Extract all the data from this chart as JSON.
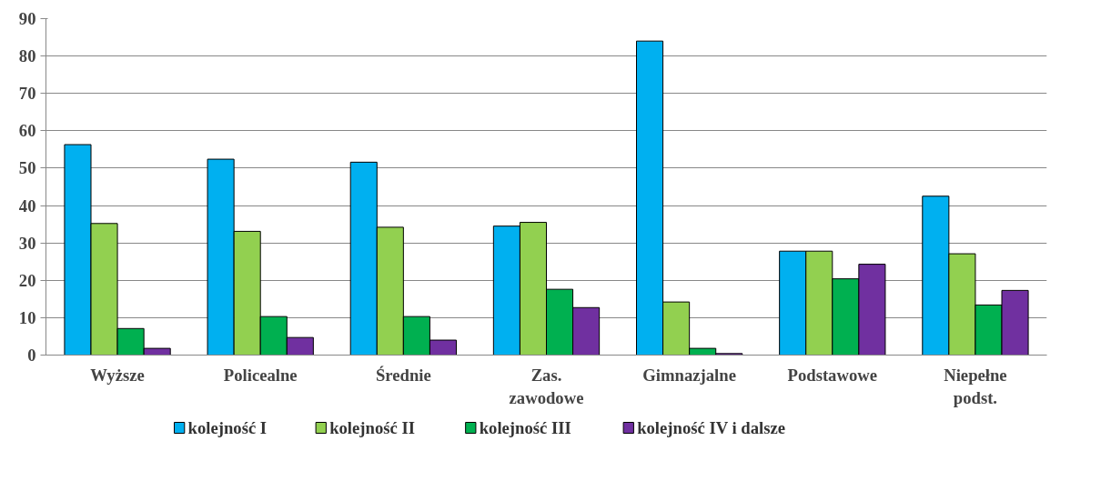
{
  "chart_data": {
    "type": "bar",
    "categories": [
      "Wyższe",
      "Policealne",
      "Średnie",
      "Zas.\nzawodowe",
      "Gimnazjalne",
      "Podstawowe",
      "Niepełne\npodst."
    ],
    "series": [
      {
        "name": "kolejność I",
        "color": "#00b0f0",
        "values": [
          56.3,
          52.4,
          51.6,
          34.5,
          84.0,
          27.8,
          42.5
        ]
      },
      {
        "name": "kolejność II",
        "color": "#92d050",
        "values": [
          35.2,
          33.1,
          34.2,
          35.5,
          14.2,
          27.8,
          27.1
        ]
      },
      {
        "name": "kolejność III",
        "color": "#00b050",
        "values": [
          7.1,
          10.3,
          10.3,
          17.6,
          1.8,
          20.4,
          13.4
        ]
      },
      {
        "name": "kolejność IV i dalsze",
        "color": "#7030a0",
        "values": [
          1.8,
          4.7,
          4.0,
          12.7,
          0.4,
          24.3,
          17.3
        ]
      }
    ],
    "ylim": [
      0,
      90
    ],
    "yticks": [
      0,
      10,
      20,
      30,
      40,
      50,
      60,
      70,
      80,
      90
    ],
    "grid": "y",
    "legend": "bottom"
  }
}
